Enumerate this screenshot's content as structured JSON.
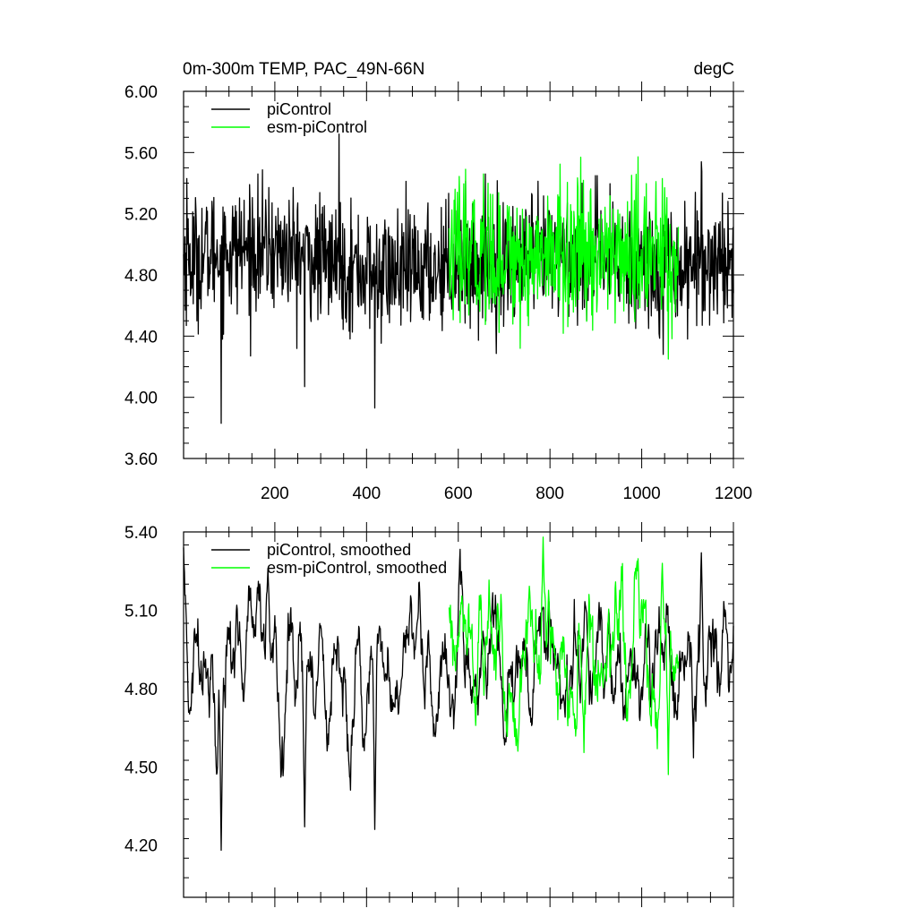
{
  "chart_data": [
    {
      "type": "line",
      "title": "0m-300m TEMP, PAC_49N-66N",
      "units": "degC",
      "xlabel": "",
      "ylabel": "",
      "xlim": [
        1,
        1200
      ],
      "ylim": [
        3.6,
        6.0
      ],
      "x_ticks": [
        200,
        400,
        600,
        800,
        1000,
        1200
      ],
      "y_ticks": [
        6.0,
        5.6,
        5.2,
        4.8,
        4.4,
        4.0,
        3.6
      ],
      "y_tick_labels": [
        "6.00",
        "5.60",
        "5.20",
        "4.80",
        "4.40",
        "4.00",
        "3.60"
      ],
      "legend": "top-left",
      "series": [
        {
          "name": "piControl",
          "color": "#000000",
          "x_start": 1,
          "x_end": 1200,
          "mean": 4.89,
          "std": 0.2,
          "smoothed": false,
          "extremes": [
            [
              8,
              5.43
            ],
            [
              83,
              3.83
            ],
            [
              340,
              5.72
            ],
            [
              265,
              4.07
            ],
            [
              418,
              3.93
            ],
            [
              1130,
              5.54
            ],
            [
              1015,
              4.45
            ]
          ]
        },
        {
          "name": "esm-piControl",
          "color": "#00ff00",
          "x_start": 580,
          "x_end": 1080,
          "mean": 4.93,
          "std": 0.22,
          "smoothed": false,
          "extremes": [
            [
              655,
              5.46
            ],
            [
              735,
              4.32
            ],
            [
              1058,
              4.25
            ],
            [
              1045,
              5.43
            ]
          ]
        }
      ]
    },
    {
      "type": "line",
      "title": "",
      "units": "",
      "xlabel": "",
      "ylabel": "",
      "xlim": [
        1,
        1200
      ],
      "ylim": [
        4.0,
        5.4
      ],
      "x_ticks": [
        200,
        400,
        600,
        800,
        1000,
        1200
      ],
      "y_ticks": [
        5.4,
        5.1,
        4.8,
        4.5,
        4.2
      ],
      "y_tick_labels": [
        "5.40",
        "5.10",
        "4.80",
        "4.50",
        "4.20"
      ],
      "legend": "top-left",
      "series": [
        {
          "name": "piControl, smoothed",
          "color": "#000000",
          "x_start": 1,
          "x_end": 1200,
          "mean": 4.89,
          "std": 0.14,
          "smoothed": true,
          "extremes": [
            [
              83,
              4.18
            ],
            [
              185,
              5.26
            ],
            [
              418,
              4.26
            ],
            [
              265,
              4.27
            ],
            [
              1130,
              5.32
            ],
            [
              1195,
              4.86
            ]
          ]
        },
        {
          "name": "esm-piControl, smoothed",
          "color": "#00ff00",
          "x_start": 580,
          "x_end": 1080,
          "mean": 4.93,
          "std": 0.15,
          "smoothed": true,
          "extremes": [
            [
              785,
              5.38
            ],
            [
              730,
              4.56
            ],
            [
              1058,
              4.47
            ],
            [
              1045,
              5.28
            ]
          ]
        }
      ]
    }
  ]
}
